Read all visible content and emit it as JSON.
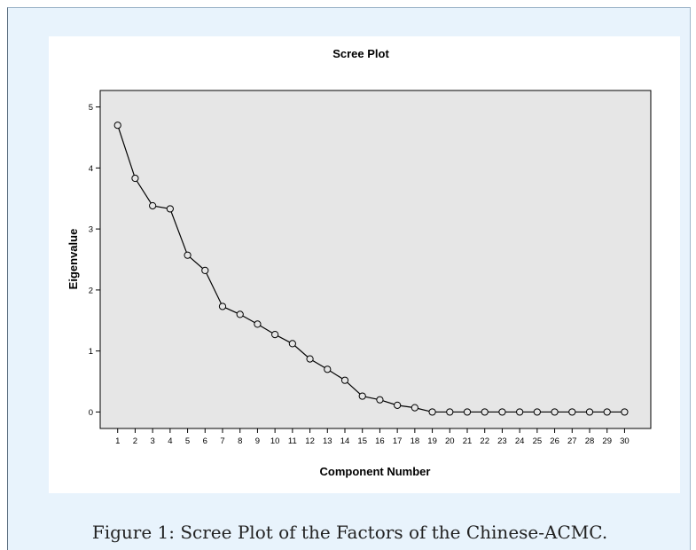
{
  "figure": {
    "caption": "Figure 1: Scree Plot of the Factors of the Chinese-ACMC."
  },
  "colors": {
    "page_background": "#e8f3fc",
    "plot_background": "#e6e6e6",
    "line": "#000000"
  },
  "chart_data": {
    "type": "line",
    "title": "Scree Plot",
    "xlabel": "Component Number",
    "ylabel": "Eigenvalue",
    "markers": "open-circle",
    "grid": false,
    "legend": "none",
    "x": [
      1,
      2,
      3,
      4,
      5,
      6,
      7,
      8,
      9,
      10,
      11,
      12,
      13,
      14,
      15,
      16,
      17,
      18,
      19,
      20,
      21,
      22,
      23,
      24,
      25,
      26,
      27,
      28,
      29,
      30
    ],
    "xticks": [
      "1",
      "2",
      "3",
      "4",
      "5",
      "6",
      "7",
      "8",
      "9",
      "10",
      "11",
      "12",
      "13",
      "14",
      "15",
      "16",
      "17",
      "18",
      "19",
      "20",
      "21",
      "22",
      "23",
      "24",
      "25",
      "26",
      "27",
      "28",
      "29",
      "30"
    ],
    "yticks": [
      "0",
      "1",
      "2",
      "3",
      "4",
      "5"
    ],
    "xlim": [
      0,
      31.5
    ],
    "ylim": [
      -0.27,
      5.27
    ],
    "series": [
      {
        "values": [
          4.7,
          3.83,
          3.38,
          3.33,
          2.57,
          2.32,
          1.73,
          1.6,
          1.44,
          1.27,
          1.12,
          0.87,
          0.7,
          0.52,
          0.26,
          0.2,
          0.11,
          0.07,
          0.0,
          0.0,
          0.0,
          0.0,
          0.0,
          0.0,
          0.0,
          0.0,
          0.0,
          0.0,
          0.0,
          0.0
        ]
      }
    ]
  }
}
